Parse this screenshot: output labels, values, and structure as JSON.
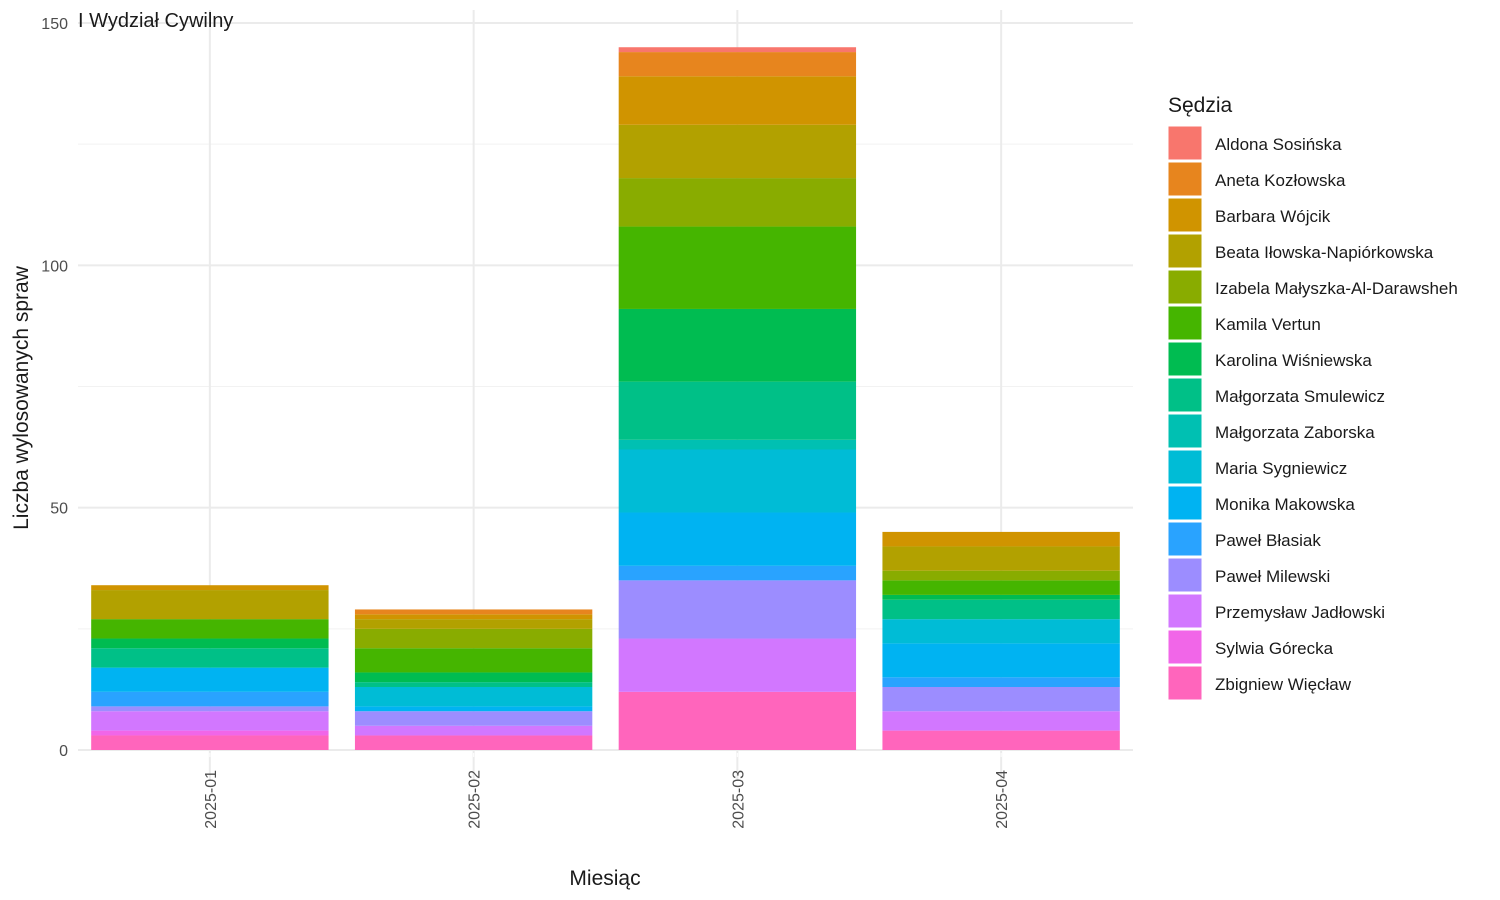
{
  "chart_data": {
    "type": "bar",
    "stacked": true,
    "title": "I Wydział Cywilny",
    "xlabel": "Miesiąc",
    "ylabel": "Liczba wylosowanych spraw",
    "ylim": [
      0,
      152
    ],
    "yticks": [
      0,
      50,
      100,
      150
    ],
    "grid": true,
    "legend": {
      "title": "Sędzia",
      "position": "right"
    },
    "categories": [
      "2025-01",
      "2025-02",
      "2025-03",
      "2025-04"
    ],
    "series": [
      {
        "name": "Aldona Sosińska",
        "color": "#F8766D",
        "values": [
          0,
          0,
          1,
          0
        ]
      },
      {
        "name": "Aneta Kozłowska",
        "color": "#E7851E",
        "values": [
          0,
          1,
          5,
          0
        ]
      },
      {
        "name": "Barbara Wójcik",
        "color": "#D09400",
        "values": [
          1,
          1,
          10,
          3
        ]
      },
      {
        "name": "Beata Iłowska-Napiórkowska",
        "color": "#B2A100",
        "values": [
          6,
          2,
          11,
          5
        ]
      },
      {
        "name": "Izabela Małyszka-Al-Darawsheh",
        "color": "#89AC00",
        "values": [
          0,
          4,
          10,
          2
        ]
      },
      {
        "name": "Kamila Vertun",
        "color": "#45B500",
        "values": [
          4,
          5,
          17,
          3
        ]
      },
      {
        "name": "Karolina Wiśniewska",
        "color": "#00BC51",
        "values": [
          2,
          2,
          15,
          1
        ]
      },
      {
        "name": "Małgorzata Smulewicz",
        "color": "#00C087",
        "values": [
          4,
          1,
          12,
          4
        ]
      },
      {
        "name": "Małgorzata Zaborska",
        "color": "#00C0B2",
        "values": [
          0,
          0,
          2,
          0
        ]
      },
      {
        "name": "Maria Sygniewicz",
        "color": "#00BCD6",
        "values": [
          0,
          4,
          13,
          5
        ]
      },
      {
        "name": "Monika Makowska",
        "color": "#00B3F2",
        "values": [
          5,
          1,
          11,
          7
        ]
      },
      {
        "name": "Paweł Błasiak",
        "color": "#29A3FF",
        "values": [
          3,
          0,
          3,
          2
        ]
      },
      {
        "name": "Paweł Milewski",
        "color": "#9C8DFF",
        "values": [
          1,
          3,
          12,
          5
        ]
      },
      {
        "name": "Przemysław Jadłowski",
        "color": "#D277FF",
        "values": [
          4,
          2,
          11,
          4
        ]
      },
      {
        "name": "Sylwia Górecka",
        "color": "#F166E8",
        "values": [
          1,
          0,
          0,
          0
        ]
      },
      {
        "name": "Zbigniew Więcław",
        "color": "#FF65BC",
        "values": [
          3,
          3,
          12,
          4
        ]
      }
    ]
  }
}
